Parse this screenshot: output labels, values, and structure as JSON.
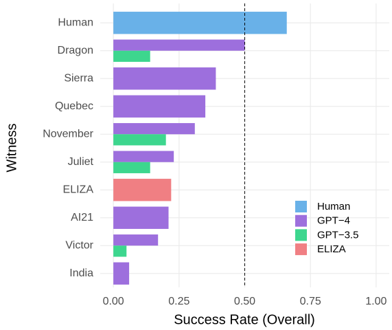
{
  "chart_data": {
    "type": "bar",
    "orientation": "horizontal",
    "x_label": "Success Rate (Overall)",
    "y_label": "Witness",
    "categories": [
      "Human",
      "Dragon",
      "Sierra",
      "Quebec",
      "November",
      "Juliet",
      "ELIZA",
      "AI21",
      "Victor",
      "India"
    ],
    "series": [
      {
        "name": "Human",
        "color": "#69b1e8",
        "values": [
          0.66,
          null,
          null,
          null,
          null,
          null,
          null,
          null,
          null,
          null
        ]
      },
      {
        "name": "GPT−4",
        "color": "#9d6fdd",
        "values": [
          null,
          0.5,
          0.39,
          0.35,
          0.31,
          0.23,
          null,
          0.21,
          0.17,
          0.06
        ]
      },
      {
        "name": "GPT−3.5",
        "color": "#3dd68e",
        "values": [
          null,
          0.14,
          null,
          null,
          0.2,
          0.14,
          null,
          null,
          0.05,
          null
        ]
      },
      {
        "name": "ELIZA",
        "color": "#f07f83",
        "values": [
          null,
          null,
          null,
          null,
          null,
          null,
          0.22,
          null,
          null,
          null
        ]
      }
    ],
    "xlim": [
      -0.05,
      1.05
    ],
    "xticks": [
      {
        "value": 0,
        "label": "0.00"
      },
      {
        "value": 0.25,
        "label": "0.25"
      },
      {
        "value": 0.5,
        "label": "0.50"
      },
      {
        "value": 0.75,
        "label": "0.75"
      },
      {
        "value": 1,
        "label": "1.00"
      }
    ],
    "reference_line": 0.5,
    "grid": true,
    "legend_position": "bottom-right"
  }
}
